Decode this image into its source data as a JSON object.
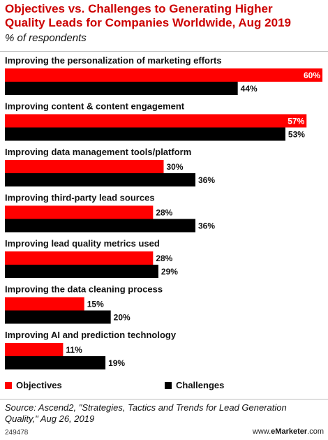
{
  "header": {
    "title_line1": "Objectives vs. Challenges to Generating Higher",
    "title_line2": "Quality Leads for Companies Worldwide, Aug 2019",
    "subtitle": "% of respondents"
  },
  "chart_data": {
    "type": "bar",
    "orientation": "horizontal",
    "categories": [
      "Improving the personalization of marketing efforts",
      "Improving content & content engagement",
      "Improving data management tools/platform",
      "Improving third-party lead sources",
      "Improving lead quality metrics used",
      "Improving the data cleaning process",
      "Improving AI and prediction technology"
    ],
    "series": [
      {
        "name": "Objectives",
        "color": "#ff0000",
        "values": [
          60,
          57,
          30,
          28,
          28,
          15,
          11
        ]
      },
      {
        "name": "Challenges",
        "color": "#000000",
        "values": [
          44,
          53,
          36,
          36,
          29,
          20,
          19
        ]
      }
    ],
    "value_suffix": "%",
    "xlim": [
      0,
      60
    ],
    "grid": false,
    "legend_position": "bottom"
  },
  "legend": {
    "objectives": "Objectives",
    "challenges": "Challenges"
  },
  "footer": {
    "source": "Source: Ascend2, \"Strategies, Tactics and Trends for Lead Generation Quality,\" Aug 26, 2019",
    "id": "249478",
    "brand_prefix": "www.",
    "brand_name": "eMarketer",
    "brand_suffix": ".com"
  }
}
